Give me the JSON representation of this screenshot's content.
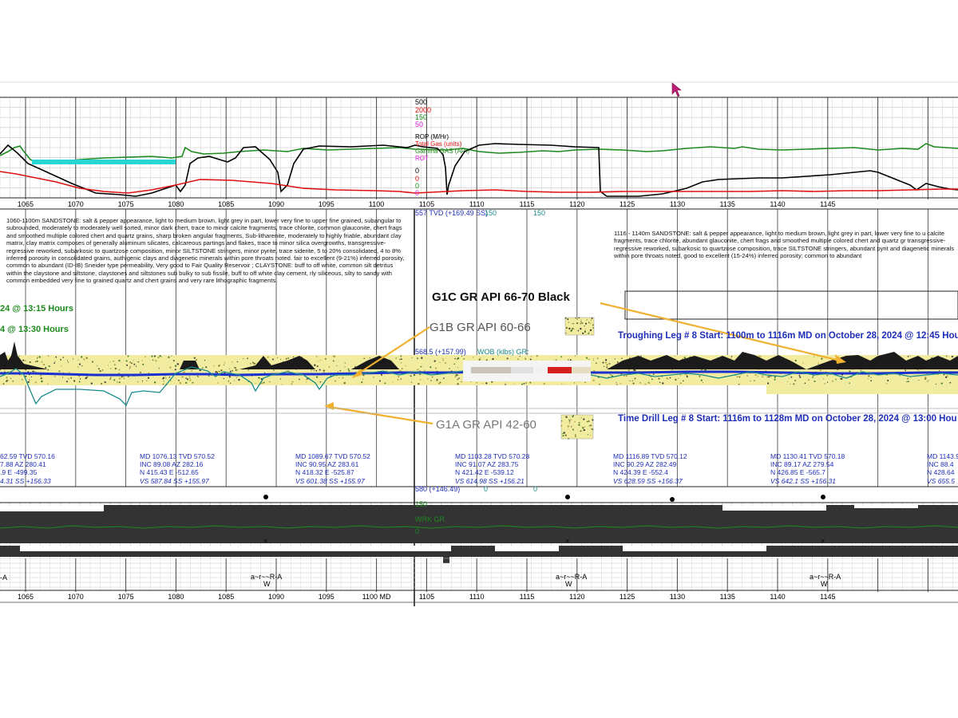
{
  "depth_ticks_top": [
    "1065",
    "1070",
    "1075",
    "1080",
    "1085",
    "1090",
    "1095",
    "1100",
    "1105",
    "1110",
    "1115",
    "1120",
    "1125",
    "1130",
    "1135",
    "1140",
    "1145"
  ],
  "depth_ticks_bottom": [
    "1065",
    "1070",
    "1075",
    "1080",
    "1085",
    "1090",
    "1095",
    "1100 MD",
    "1105",
    "1110",
    "1115",
    "1120",
    "1125",
    "1130",
    "1135",
    "1140",
    "1145"
  ],
  "scale": {
    "v500": "500",
    "v2000": "2000",
    "v150": "150",
    "v50": "50",
    "v0a": "0",
    "v0b": "0",
    "v0c": "0",
    "v0d": "0"
  },
  "legend": {
    "rop": "ROP (M/Hr)",
    "gas": "Total Gas (units)",
    "gamma": "Gamma GAS (API)",
    "rot": "ROT"
  },
  "colors": {
    "rop": "#000000",
    "gas": "#e01010",
    "gamma": "#1d8a1d",
    "rot": "#e020e0",
    "survey": "#1f2fb8",
    "gr_blue": "#1a2fd0",
    "gr_teal": "#1a8a8a",
    "sand": "#f1eca0"
  },
  "tvd_label": "557 TVD (+169.49 SS)",
  "tvd_150a": "150",
  "tvd_150b": "150",
  "desc_left": "1060-1100m SANDSTONE: salt & pepper appearance, light to medium brown, light grey in part, lower very fine to upper fine grained, subangular to subrounded, moderately to moderately well sorted, minor dark chert, trace to minor calcite fragments, trace chlorite, common glauconite, chert frags and smoothed multiple colored chert and quartz grains, sharp broken angular fragments, Sub-litharenite, moderately to highly friable, abundant clay matrix, clay matrix composes of generally aluminum silicates, calcareous partings and flakes, trace to minor silica overgrowths, transgressive-regressive reworked, subarkosic to quartzose composition, minor SILTSTONE stringers, minor pyrite, trace siderite, 5 to 20% consolidated, 4 to 8% inferred porosity in consolidated grains, authigenic clays and diagenetic minerals within pore throats noted. fair to excellent (9-21%) inferred porosity, common to abundant (ID-IB) Sneider type permeability, Very good to Fair Quality Reservoir ; CLAYSTONE: buff to off white, common silt detritus within the claystone and siltstone, claystones and siltstones sub bulky to sub fissile, buff to off white clay cement, rly siliceous, silty to sandy with common embedded very fine to grained quartz and chert grains and very rare lithographic fragments.",
  "desc_right": "1116 - 1140m SANDSTONE: salt & pepper appearance, light to medium brown, light grey in part, lower very fine to u calcite fragments, trace chlorite, abundant glauconite, chert frags and smoothed multiple colored chert and quartz gr transgressive-regressive reworked, subarkosic to quartzose composition, trace SILTSTONE stringers, abundant pyrit and diagenetic minerals within pore throats noted, good to excellent (15-24%) inferred porosity; common to abundant",
  "time1": "24 @ 13:15 Hours",
  "time2": "4 @ 13:30 Hours",
  "g1c": "G1C GR API 66-70  Black",
  "g1b": "G1B GR API 60-66",
  "g1a": "G1A GR API 42-60",
  "trough": "Troughing Leg # 8  Start: 1100m to 1116m MD on October 28, 2024 @ 12:45 Hou",
  "timedrill": "Time Drill Leg # 8  Start: 1116m to 1128m MD on October 28, 2024 @ 13:00 Hou",
  "mid_lbl": "568.5 (+157.99)",
  "wob_lbl": "WOB (klbs) GR:",
  "lbl_580": "580 (+146.49)",
  "lbl_0a": "0",
  "lbl_0b": "0",
  "wrk_gr": "WRK GR",
  "lbl_0c": "0",
  "lbl_150c": "150",
  "surveys": [
    {
      "l1": "62.59 TVD 570.16",
      "l2": "7.88 AZ 280.41",
      "l3": ".9 E -499.35",
      "l4": "4.31 SS +156.33"
    },
    {
      "l1": "MD 1076.13 TVD 570.52",
      "l2": "INC 89.08 AZ 282.16",
      "l3": "N 415.43 E -512.65",
      "l4": "VS 587.84 SS +155.97"
    },
    {
      "l1": "MD 1089.67 TVD 570.52",
      "l2": "INC 90.95 AZ 283.61",
      "l3": "N 418.32 E -525.87",
      "l4": "VS 601.38 SS +155.97"
    },
    {
      "l1": "MD 1103.28 TVD 570.28",
      "l2": "INC 91.07 AZ 283.75",
      "l3": "N 421.42 E -539.12",
      "l4": "VS 614.98 SS +156.21"
    },
    {
      "l1": "MD 1116.89 TVD 570.12",
      "l2": "INC 90.29 AZ 282.49",
      "l3": "N 424.39 E -552.4",
      "l4": "VS 628.59 SS +156.37"
    },
    {
      "l1": "MD 1130.41 TVD 570.18",
      "l2": "INC 89.17 AZ 279.54",
      "l3": "N 426.85 E -565.7",
      "l4": "VS 642.1 SS +156.31"
    },
    {
      "l1": "MD 1143.9",
      "l2": "INC 88.4",
      "l3": "N 428.64",
      "l4": "VS 655.5"
    }
  ],
  "bottom_codes": [
    "a~r~~R-A",
    "a~r~~R-A",
    "a~r~~R-A"
  ],
  "bottom_sub": [
    "W",
    "W",
    "W"
  ],
  "left_a1": "-A",
  "left_a2": "-A"
}
